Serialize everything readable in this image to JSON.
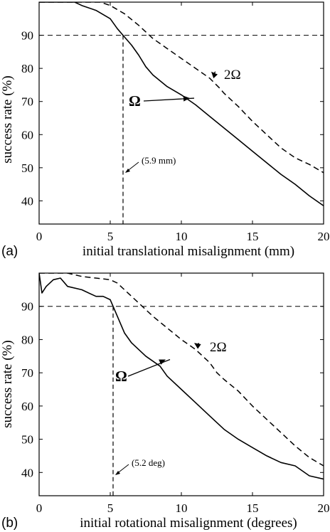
{
  "chart_data": [
    {
      "type": "line",
      "panel_label": "(a)",
      "xlabel": "initial translational misalignment (mm)",
      "ylabel": "success rate (%)",
      "xlim": [
        0,
        20
      ],
      "ylim": [
        33,
        100
      ],
      "xticks": [
        0,
        5,
        10,
        15,
        20
      ],
      "yticks": [
        40,
        50,
        60,
        70,
        80,
        90
      ],
      "threshold_y": 90,
      "threshold_x": 5.9,
      "threshold_annotation": "(5.9 mm)",
      "series": [
        {
          "name": "Ω",
          "style": "solid",
          "x": [
            0,
            2.5,
            3,
            4,
            5,
            5.5,
            5.9,
            6.5,
            7,
            7.5,
            8,
            9,
            10,
            11,
            12,
            13,
            14,
            15,
            16,
            17,
            18,
            19,
            20
          ],
          "y": [
            100,
            100,
            99,
            97.5,
            95,
            92,
            90,
            87,
            84,
            80.5,
            78,
            74.5,
            72,
            69,
            65.5,
            62,
            58.5,
            55,
            51.5,
            48,
            45,
            41.5,
            38.5
          ]
        },
        {
          "name": "2Ω",
          "style": "dashed",
          "x": [
            0,
            4.3,
            5,
            6,
            7,
            8,
            9,
            10,
            11,
            12,
            12.7,
            13,
            14,
            15,
            16,
            17,
            18,
            19,
            20
          ],
          "y": [
            100,
            100,
            99,
            96.5,
            93,
            89,
            86,
            83,
            80,
            77,
            74,
            72.5,
            68.5,
            64,
            60,
            56,
            53,
            51,
            48.5
          ]
        }
      ],
      "annotations": [
        {
          "text": "2Ω",
          "arrow_to": [
            12.1,
            79
          ]
        },
        {
          "text": "Ω",
          "arrow_to": [
            10.6,
            71
          ]
        }
      ]
    },
    {
      "type": "line",
      "panel_label": "(b)",
      "xlabel": "initial rotational misalignment (degrees)",
      "ylabel": "success rate (%)",
      "xlim": [
        0,
        20
      ],
      "ylim": [
        33,
        100
      ],
      "xticks": [
        0,
        5,
        10,
        15,
        20
      ],
      "yticks": [
        40,
        50,
        60,
        70,
        80,
        90
      ],
      "threshold_y": 90,
      "threshold_x": 5.2,
      "threshold_annotation": "(5.2 deg)",
      "series": [
        {
          "name": "Ω",
          "style": "solid",
          "x": [
            0,
            0.2,
            0.5,
            1,
            1.5,
            2,
            3,
            4,
            4.5,
            5,
            5.2,
            5.5,
            6,
            6.5,
            7,
            7.5,
            8,
            8.5,
            9,
            10,
            11,
            12,
            13,
            14,
            15,
            16,
            17,
            18,
            19,
            20
          ],
          "y": [
            100,
            94,
            96,
            98,
            98.5,
            96,
            95,
            93,
            93,
            92,
            90,
            87,
            82,
            79,
            77,
            75,
            73.5,
            72,
            69,
            65,
            61,
            57,
            53,
            50,
            47.5,
            45,
            43,
            42,
            39,
            38
          ]
        },
        {
          "name": "2Ω",
          "style": "dashed",
          "x": [
            0,
            2,
            3,
            4,
            5,
            5.5,
            6,
            7,
            8,
            9,
            10,
            11,
            12,
            12.5,
            13,
            14,
            15,
            16,
            17,
            18,
            19,
            20
          ],
          "y": [
            100,
            100,
            99,
            98.5,
            98,
            97,
            95,
            91,
            87,
            83.5,
            80,
            77,
            73,
            70,
            68,
            64.5,
            60,
            56,
            52,
            48,
            44.5,
            42
          ]
        }
      ],
      "annotations": [
        {
          "text": "2Ω",
          "arrow_to": [
            10.9,
            79
          ]
        },
        {
          "text": "Ω",
          "arrow_to": [
            8.9,
            74
          ]
        }
      ]
    }
  ]
}
